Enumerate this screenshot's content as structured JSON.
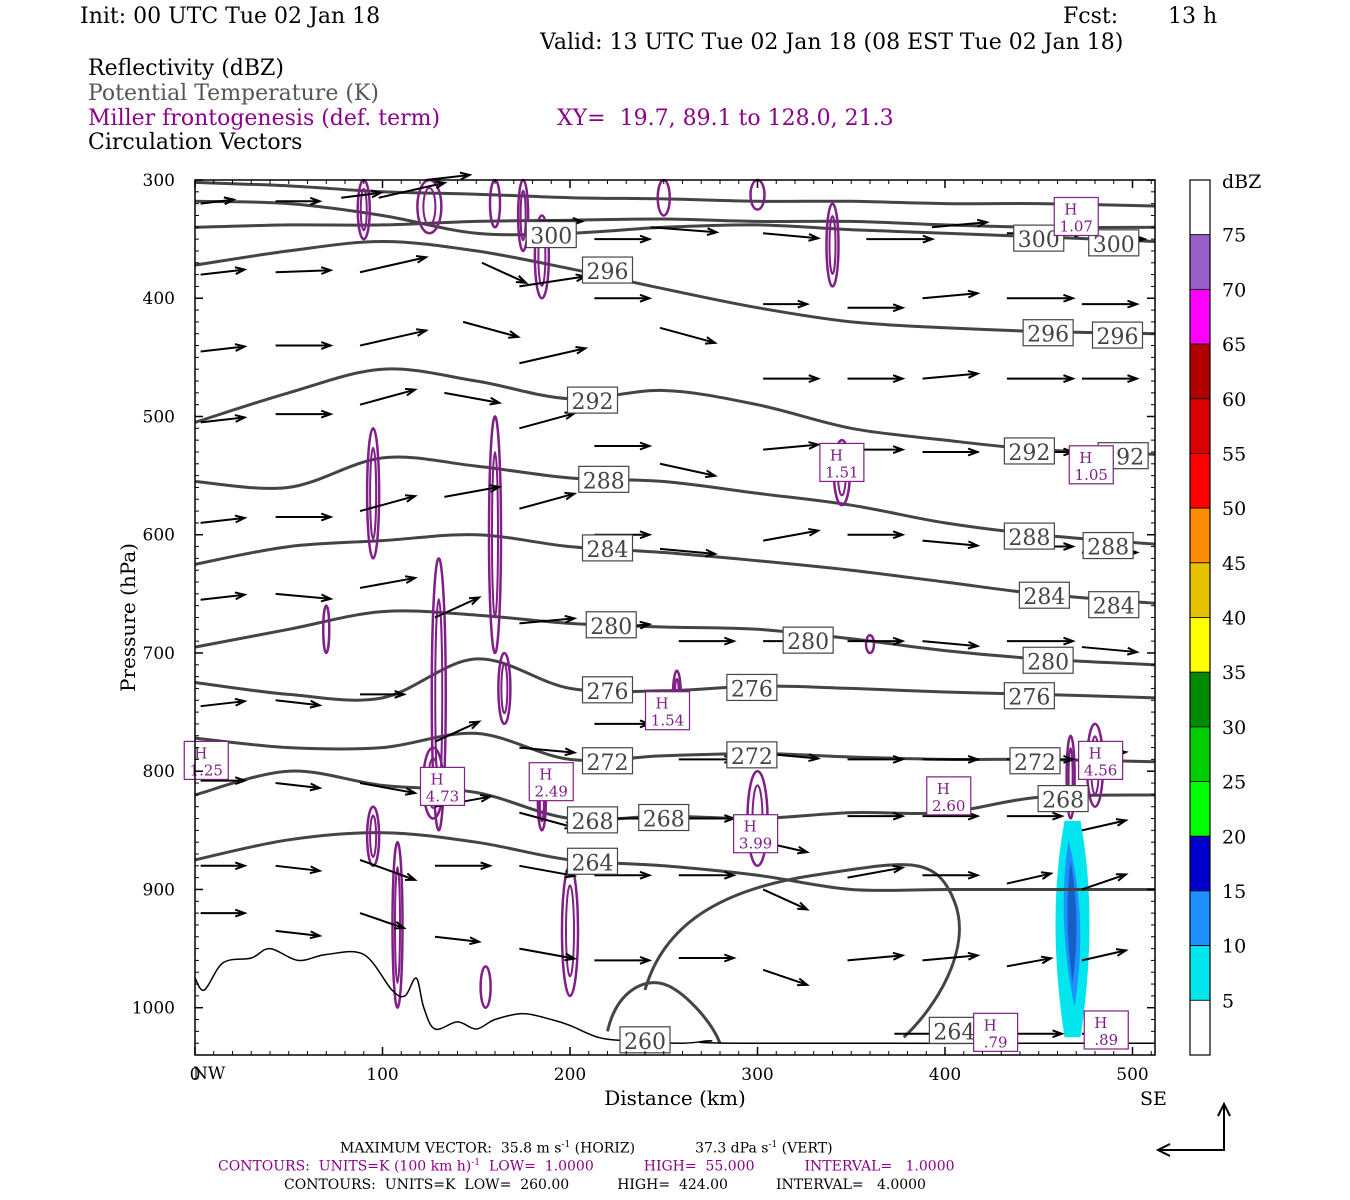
{
  "header": {
    "init": "Init: 00 UTC Tue 02 Jan 18",
    "fcst_label": "Fcst:",
    "fcst_value": "13 h",
    "valid": "Valid: 13 UTC Tue 02 Jan 18 (08 EST Tue 02 Jan 18)",
    "fields": [
      {
        "text": "Reflectivity (dBZ)",
        "color": "#000000"
      },
      {
        "text": "Potential Temperature (K)",
        "color": "#555555"
      },
      {
        "text": "Miller frontogenesis (def. term)",
        "color": "#8b008b"
      },
      {
        "text": "Circulation Vectors",
        "color": "#000000"
      }
    ],
    "xy": "XY=  19.7, 89.1 to 128.0, 21.3"
  },
  "colors": {
    "theta": "#444444",
    "fronto": "#7f1f87",
    "vectors": "#000000",
    "terrain": "#000000"
  },
  "chart_data": {
    "type": "contour-cross-section",
    "xlabel": "Distance (km)",
    "ylabel": "Pressure (hPa)",
    "xlim": [
      0,
      512
    ],
    "ylim": [
      1040,
      300
    ],
    "xticks": [
      0,
      100,
      200,
      300,
      400,
      500
    ],
    "yticks": [
      300,
      400,
      500,
      600,
      700,
      800,
      900,
      1000
    ],
    "x_end_labels": {
      "left": "NW",
      "right": "SE"
    },
    "theta_contours": [
      {
        "value": 300,
        "p": [
          318,
          320,
          330,
          345,
          345,
          340,
          338,
          342,
          345,
          348,
          352
        ],
        "labels": [
          [
            190,
            "300"
          ],
          [
            450,
            "300"
          ],
          [
            490,
            "300"
          ]
        ]
      },
      {
        "value": 296,
        "p": [
          372,
          360,
          352,
          360,
          375,
          392,
          408,
          420,
          425,
          428,
          430
        ],
        "labels": [
          [
            220,
            "296"
          ],
          [
            455,
            "296"
          ],
          [
            492,
            "296"
          ]
        ]
      },
      {
        "value": 292,
        "p": [
          505,
          480,
          460,
          470,
          485,
          478,
          490,
          510,
          520,
          528,
          532
        ],
        "labels": [
          [
            212,
            "292"
          ],
          [
            445,
            "292"
          ],
          [
            495,
            "292"
          ]
        ]
      },
      {
        "value": 288,
        "p": [
          555,
          560,
          535,
          542,
          552,
          555,
          565,
          575,
          590,
          600,
          608
        ],
        "labels": [
          [
            218,
            "288"
          ],
          [
            445,
            "288"
          ],
          [
            487,
            "288"
          ]
        ]
      },
      {
        "value": 284,
        "p": [
          625,
          610,
          605,
          600,
          610,
          615,
          622,
          630,
          640,
          650,
          658
        ],
        "labels": [
          [
            220,
            "284"
          ],
          [
            453,
            "284"
          ],
          [
            490,
            "284"
          ]
        ]
      },
      {
        "value": 280,
        "p": [
          695,
          680,
          665,
          668,
          675,
          678,
          680,
          688,
          698,
          705,
          710
        ],
        "labels": [
          [
            222,
            "280"
          ],
          [
            327,
            "280"
          ],
          [
            455,
            "280"
          ]
        ]
      },
      {
        "value": 276,
        "p": [
          725,
          735,
          738,
          705,
          730,
          732,
          728,
          730,
          733,
          735,
          738
        ],
        "labels": [
          [
            220,
            "276"
          ],
          [
            297,
            "276"
          ],
          [
            445,
            "276"
          ]
        ]
      },
      {
        "value": 272,
        "p": [
          772,
          780,
          780,
          768,
          790,
          787,
          785,
          788,
          790,
          790,
          792
        ],
        "labels": [
          [
            220,
            "272"
          ],
          [
            297,
            "272"
          ],
          [
            448,
            "272"
          ]
        ]
      },
      {
        "value": 268,
        "p": [
          820,
          800,
          812,
          818,
          840,
          838,
          840,
          835,
          835,
          822,
          820
        ],
        "labels": [
          [
            212,
            "268"
          ],
          [
            250,
            "268"
          ],
          [
            463,
            "268"
          ]
        ]
      },
      {
        "value": 264,
        "p": [
          875,
          858,
          852,
          860,
          875,
          880,
          888,
          900,
          900,
          900,
          900
        ],
        "labels": [
          [
            212,
            "264"
          ]
        ]
      }
    ],
    "theta_264_lower_label": [
      [
        405,
        "264"
      ]
    ],
    "theta_260_label": [
      [
        240,
        "260"
      ]
    ],
    "fronto_maxima": [
      {
        "x": 6,
        "p": 790,
        "label": "H",
        "value": "1.25"
      },
      {
        "x": 132,
        "p": 812,
        "label": "H",
        "value": "4.73"
      },
      {
        "x": 190,
        "p": 808,
        "label": "H",
        "value": "2.49"
      },
      {
        "x": 252,
        "p": 748,
        "label": "H",
        "value": "1.54"
      },
      {
        "x": 299,
        "p": 852,
        "label": "H",
        "value": "3.99"
      },
      {
        "x": 345,
        "p": 538,
        "label": "H",
        "value": "1.51"
      },
      {
        "x": 402,
        "p": 820,
        "label": "H",
        "value": "2.60"
      },
      {
        "x": 427,
        "p": 1020,
        "label": "H",
        "value": ".79"
      },
      {
        "x": 470,
        "p": 330,
        "label": "H",
        "value": "1.07"
      },
      {
        "x": 478,
        "p": 540,
        "label": "H",
        "value": "1.05"
      },
      {
        "x": 483,
        "p": 790,
        "label": "H",
        "value": "4.56"
      },
      {
        "x": 486,
        "p": 1018,
        "label": "H",
        "value": ".89"
      }
    ],
    "reflectivity": [
      {
        "x": 468,
        "p_top": 842,
        "p_bottom": 1025,
        "max_dbz": 15
      }
    ],
    "colorbar": {
      "unit": "dBZ",
      "levels": [
        5,
        10,
        15,
        20,
        25,
        30,
        35,
        40,
        45,
        50,
        55,
        60,
        65,
        70,
        75
      ],
      "colors": [
        "#ffffff",
        "#00e5ee",
        "#1e90ff",
        "#0000cd",
        "#00ff00",
        "#00cd00",
        "#008b00",
        "#ffff00",
        "#e6c200",
        "#ff8c00",
        "#ff0000",
        "#dd0000",
        "#b00000",
        "#ff00ff",
        "#9a5fc8",
        "#ffffff"
      ]
    }
  },
  "footer": {
    "line1_a": "MAXIMUM VECTOR:  35.8 m s",
    "line1_sup1": "-1",
    "line1_b": " (HORIZ)",
    "line1_c": "37.3 dPa s",
    "line1_sup2": "-1",
    "line1_d": " (VERT)",
    "line2_a": "CONTOURS:  UNITS=K (100 km h)",
    "line2_sup": "-1",
    "line2_b": "  LOW=  1.0000",
    "line2_c": "HIGH=  55.000",
    "line2_d": "INTERVAL=   1.0000",
    "line3_a": "CONTOURS:  UNITS=K  LOW=  260.00",
    "line3_b": "HIGH=  424.00",
    "line3_c": "INTERVAL=   4.0000"
  }
}
